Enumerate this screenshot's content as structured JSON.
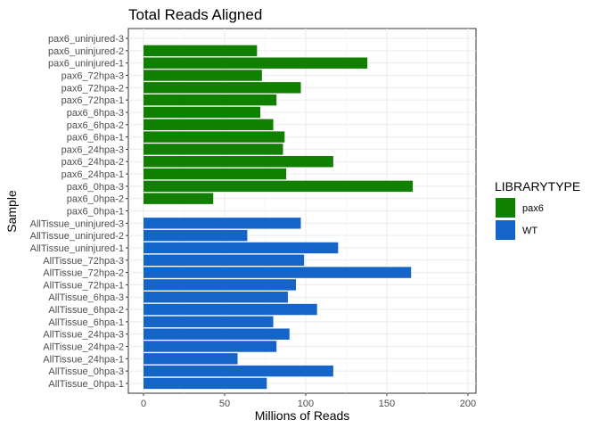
{
  "chart_data": {
    "type": "bar",
    "orientation": "horizontal",
    "title": "Total Reads Aligned",
    "xlabel": "Millions of Reads",
    "ylabel": "Sample",
    "xlim": [
      0,
      205
    ],
    "xticks": [
      0,
      50,
      100,
      150,
      200
    ],
    "grid": true,
    "legend": {
      "title": "LIBRARYTYPE",
      "placement": "right",
      "entries": [
        {
          "name": "pax6",
          "color": "#118000"
        },
        {
          "name": "WT",
          "color": "#1565c8"
        }
      ]
    },
    "categories": [
      "pax6_uninjured-3",
      "pax6_uninjured-2",
      "pax6_uninjured-1",
      "pax6_72hpa-3",
      "pax6_72hpa-2",
      "pax6_72hpa-1",
      "pax6_6hpa-3",
      "pax6_6hpa-2",
      "pax6_6hpa-1",
      "pax6_24hpa-3",
      "pax6_24hpa-2",
      "pax6_24hpa-1",
      "pax6_0hpa-3",
      "pax6_0hpa-2",
      "pax6_0hpa-1",
      "AllTissue_uninjured-3",
      "AllTissue_uninjured-2",
      "AllTissue_uninjured-1",
      "AllTissue_72hpa-3",
      "AllTissue_72hpa-2",
      "AllTissue_72hpa-1",
      "AllTissue_6hpa-3",
      "AllTissue_6hpa-2",
      "AllTissue_6hpa-1",
      "AllTissue_24hpa-3",
      "AllTissue_24hpa-2",
      "AllTissue_24hpa-1",
      "AllTissue_0hpa-3",
      "AllTissue_0hpa-1"
    ],
    "values": [
      0,
      70,
      138,
      73,
      97,
      82,
      72,
      80,
      87,
      86,
      117,
      88,
      166,
      43,
      0,
      97,
      64,
      120,
      99,
      165,
      94,
      89,
      107,
      80,
      90,
      82,
      58,
      117,
      76
    ],
    "groups": [
      "pax6",
      "pax6",
      "pax6",
      "pax6",
      "pax6",
      "pax6",
      "pax6",
      "pax6",
      "pax6",
      "pax6",
      "pax6",
      "pax6",
      "pax6",
      "pax6",
      "pax6",
      "WT",
      "WT",
      "WT",
      "WT",
      "WT",
      "WT",
      "WT",
      "WT",
      "WT",
      "WT",
      "WT",
      "WT",
      "WT",
      "WT"
    ]
  }
}
